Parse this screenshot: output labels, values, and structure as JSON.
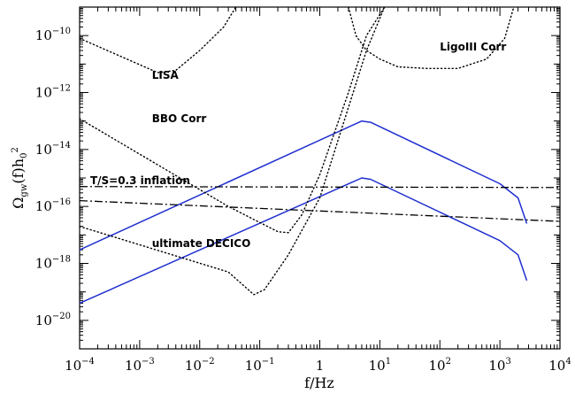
{
  "chart_data": {
    "type": "line",
    "x_scale": "log",
    "y_scale": "log",
    "xlim": [
      0.0001,
      10000
    ],
    "ylim": [
      1e-21,
      1e-09
    ],
    "xlabel": "f/Hz",
    "ylabel": "Ω_gw(f)h_0^2",
    "grid": false,
    "x_ticks": [
      {
        "base": "10",
        "exp": "−4",
        "value": 0.0001
      },
      {
        "base": "10",
        "exp": "−3",
        "value": 0.001
      },
      {
        "base": "10",
        "exp": "−2",
        "value": 0.01
      },
      {
        "base": "10",
        "exp": "−1",
        "value": 0.1
      },
      {
        "base": "1",
        "exp": "",
        "value": 1
      },
      {
        "base": "10",
        "exp": "1",
        "value": 10
      },
      {
        "base": "10",
        "exp": "2",
        "value": 100
      },
      {
        "base": "10",
        "exp": "3",
        "value": 1000
      },
      {
        "base": "10",
        "exp": "4",
        "value": 10000
      }
    ],
    "y_ticks": [
      {
        "base": "10",
        "exp": "−20",
        "value": 1e-20
      },
      {
        "base": "10",
        "exp": "−18",
        "value": 1e-18
      },
      {
        "base": "10",
        "exp": "−16",
        "value": 1e-16
      },
      {
        "base": "10",
        "exp": "−14",
        "value": 1e-14
      },
      {
        "base": "10",
        "exp": "−12",
        "value": 1e-12
      },
      {
        "base": "10",
        "exp": "−10",
        "value": 1e-10
      }
    ],
    "series": [
      {
        "style": "blue-solid",
        "color": "#1f2fd0",
        "x": [
          0.0001,
          5,
          7,
          1000,
          2000,
          2800
        ],
        "y": [
          3e-18,
          1e-13,
          9e-14,
          6.3e-16,
          2e-16,
          2.5e-17
        ]
      },
      {
        "style": "blue-solid",
        "color": "#1f2fd0",
        "x": [
          0.0001,
          5,
          7,
          1000,
          2000,
          2800
        ],
        "y": [
          4e-20,
          1e-15,
          9e-16,
          6.3e-18,
          2e-18,
          2.5e-19
        ]
      },
      {
        "style": "dashdot",
        "color": "#000000",
        "x": [
          0.0001,
          10000
        ],
        "y": [
          5e-16,
          4.6e-16
        ]
      },
      {
        "style": "dashdot",
        "color": "#000000",
        "x": [
          0.0001,
          10000
        ],
        "y": [
          1.6e-16,
          3e-17
        ]
      },
      {
        "style": "dotted",
        "color": "#000000",
        "label_ref": "LISA",
        "x": [
          0.0001,
          0.002,
          0.004,
          0.01,
          0.025,
          0.04
        ],
        "y": [
          8e-11,
          5e-12,
          6e-12,
          3e-11,
          2e-10,
          1e-09
        ]
      },
      {
        "style": "dotted",
        "color": "#000000",
        "label_ref": "BBO Corr",
        "x": [
          0.0001,
          0.03,
          0.2,
          0.3,
          0.5,
          1,
          3,
          6,
          12
        ],
        "y": [
          1.2e-13,
          1e-16,
          1.3e-17,
          1.2e-17,
          5e-17,
          1.3e-15,
          1e-12,
          1e-10,
          1e-09
        ]
      },
      {
        "style": "dotted",
        "color": "#000000",
        "label_ref": "ultimate DECICO",
        "x": [
          0.0001,
          0.03,
          0.08,
          0.12,
          0.3,
          1,
          3,
          6,
          12
        ],
        "y": [
          2e-17,
          5e-19,
          8e-20,
          1.2e-19,
          2e-18,
          2e-16,
          3e-13,
          3e-11,
          1e-09
        ]
      },
      {
        "style": "dotted",
        "color": "#000000",
        "label_ref": "LigoIII Corr",
        "x": [
          3,
          4,
          6,
          10,
          20,
          60,
          200,
          600,
          1200,
          1700
        ],
        "y": [
          1e-09,
          1e-10,
          3e-11,
          1.5e-11,
          8e-12,
          7e-12,
          7e-12,
          1.5e-11,
          8e-11,
          1e-09
        ]
      }
    ],
    "annotations": [
      {
        "text": "LISA",
        "x": 0.0016,
        "y": 4e-12
      },
      {
        "text": "BBO Corr",
        "x": 0.0016,
        "y": 1.2e-13
      },
      {
        "text": "LigoIII Corr",
        "x": 100,
        "y": 4e-11
      },
      {
        "text": "T/S=0.3 inflation",
        "x": 0.00015,
        "y": 8e-16
      },
      {
        "text": "ultimate DECICO",
        "x": 0.0016,
        "y": 5e-18
      }
    ]
  }
}
